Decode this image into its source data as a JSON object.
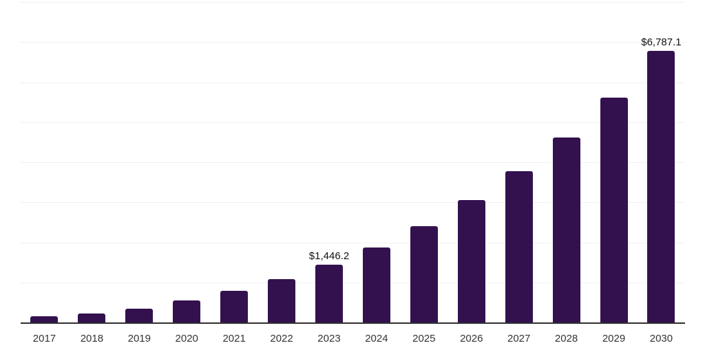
{
  "chart_data": {
    "type": "bar",
    "title": "",
    "xlabel": "",
    "ylabel": "",
    "categories": [
      "2017",
      "2018",
      "2019",
      "2020",
      "2021",
      "2022",
      "2023",
      "2024",
      "2025",
      "2026",
      "2027",
      "2028",
      "2029",
      "2030"
    ],
    "values": [
      150,
      230,
      350,
      545,
      790,
      1090,
      1446.2,
      1865,
      2400,
      3050,
      3770,
      4610,
      5610,
      6787.1
    ],
    "point_labels": [
      "",
      "",
      "",
      "",
      "",
      "",
      "$1,446.2",
      "",
      "",
      "",
      "",
      "",
      "",
      "$6,787.1"
    ],
    "ylim": [
      0,
      8000
    ],
    "gridline_step": 1000,
    "grid": true,
    "legend": false,
    "y_axis_labels_visible": false,
    "colors": {
      "bar": "#33114F",
      "gridline": "#f0f0f0",
      "axis_line": "#303030",
      "tick_label": "#333333",
      "data_label": "#111111",
      "background": "#ffffff"
    }
  }
}
